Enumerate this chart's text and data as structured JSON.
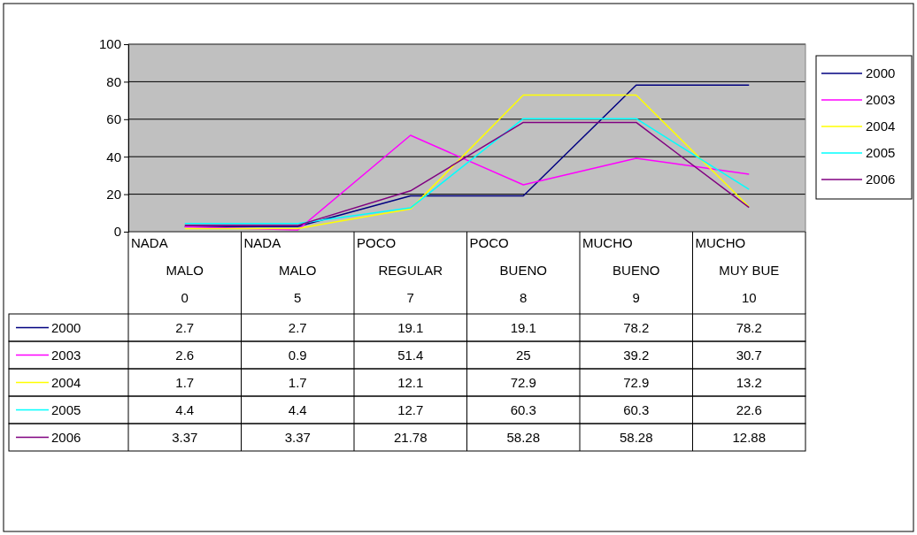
{
  "chart_data": {
    "type": "line",
    "categories": [
      "NADA\nMALO\n0",
      "NADA\nMALO\n5",
      "POCO\nREGULAR\n7",
      "POCO\nBUENO\n8",
      "MUCHO\nBUENO\n9",
      "MUCHO\nMUY BUE\n10"
    ],
    "series": [
      {
        "name": "2000",
        "color": "#000080",
        "values": [
          2.7,
          2.7,
          19.1,
          19.1,
          78.2,
          78.2
        ]
      },
      {
        "name": "2003",
        "color": "#ff00ff",
        "values": [
          2.6,
          0.9,
          51.4,
          25,
          39.2,
          30.7
        ]
      },
      {
        "name": "2004",
        "color": "#ffff00",
        "values": [
          1.7,
          1.7,
          12.1,
          72.9,
          72.9,
          13.2
        ]
      },
      {
        "name": "2005",
        "color": "#00ffff",
        "values": [
          4.4,
          4.4,
          12.7,
          60.3,
          60.3,
          22.6
        ]
      },
      {
        "name": "2006",
        "color": "#800080",
        "values": [
          3.37,
          3.37,
          21.78,
          58.28,
          58.28,
          12.88
        ]
      }
    ],
    "ylim": [
      0,
      100
    ],
    "yticks": [
      0,
      20,
      40,
      60,
      80,
      100
    ],
    "grid": "y",
    "legend": "right",
    "data_labels": true,
    "marker": "none",
    "line_style": "solid"
  }
}
